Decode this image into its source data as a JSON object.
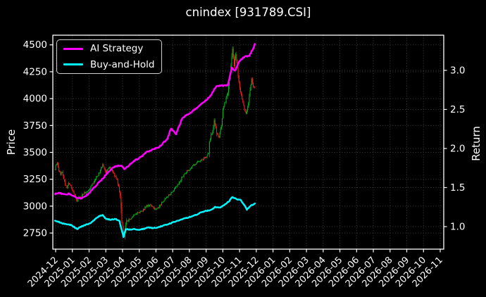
{
  "chart_data": {
    "type": "candlestick+line",
    "title": "cnindex [931789.CSI]",
    "background_color": "#000000",
    "text_color": "#ffffff",
    "grid": {
      "on": true,
      "color": "#8a8a8a",
      "style": "dotted"
    },
    "x_axis": {
      "tick_labels": [
        "2024-12",
        "2025-01",
        "2025-02",
        "2025-03",
        "2025-04",
        "2025-05",
        "2025-06",
        "2025-07",
        "2025-08",
        "2025-09",
        "2025-10",
        "2025-11",
        "2025-12",
        "2026-01",
        "2026-02",
        "2026-03",
        "2026-04",
        "2026-05",
        "2026-06",
        "2026-07",
        "2026-08",
        "2026-09",
        "2026-10",
        "2026-11"
      ],
      "label_rotation_deg": 45,
      "trading_days_per_month": 21,
      "num_days_with_data": 252
    },
    "price_axis": {
      "label": "Price",
      "side": "left",
      "ticks": [
        2750,
        3000,
        3250,
        3500,
        3750,
        4000,
        4250,
        4500
      ],
      "ylim": [
        2600,
        4590
      ]
    },
    "return_axis": {
      "label": "Return",
      "side": "right",
      "ticks": [
        "1.0",
        "1.5",
        "2.0",
        "2.5",
        "3.0"
      ],
      "tick_values": [
        1.0,
        1.5,
        2.0,
        2.5,
        3.0
      ],
      "ylim": [
        0.712,
        3.45
      ]
    },
    "candles": {
      "up_color": "#00b41e",
      "down_color": "#f21d1d",
      "close_waypoints": [
        [
          0,
          3340
        ],
        [
          1,
          3380
        ],
        [
          3,
          3400
        ],
        [
          5,
          3330
        ],
        [
          7,
          3290
        ],
        [
          9,
          3320
        ],
        [
          11,
          3260
        ],
        [
          13,
          3200
        ],
        [
          15,
          3170
        ],
        [
          17,
          3210
        ],
        [
          20,
          3180
        ],
        [
          23,
          3130
        ],
        [
          26,
          3080
        ],
        [
          28,
          3050
        ],
        [
          30,
          3090
        ],
        [
          33,
          3090
        ],
        [
          36,
          3120
        ],
        [
          39,
          3130
        ],
        [
          42,
          3150
        ],
        [
          46,
          3190
        ],
        [
          50,
          3240
        ],
        [
          54,
          3290
        ],
        [
          57,
          3330
        ],
        [
          60,
          3390
        ],
        [
          62,
          3350
        ],
        [
          64,
          3310
        ],
        [
          67,
          3350
        ],
        [
          69,
          3360
        ],
        [
          72,
          3330
        ],
        [
          74,
          3300
        ],
        [
          77,
          3260
        ],
        [
          80,
          3180
        ],
        [
          82,
          3100
        ],
        [
          84,
          2860
        ],
        [
          86,
          2750
        ],
        [
          87,
          2710
        ],
        [
          88,
          2780
        ],
        [
          90,
          2860
        ],
        [
          93,
          2880
        ],
        [
          96,
          2890
        ],
        [
          100,
          2920
        ],
        [
          105,
          2940
        ],
        [
          110,
          2960
        ],
        [
          115,
          3000
        ],
        [
          120,
          3010
        ],
        [
          125,
          2970
        ],
        [
          130,
          2990
        ],
        [
          135,
          3035
        ],
        [
          140,
          3080
        ],
        [
          145,
          3120
        ],
        [
          150,
          3160
        ],
        [
          155,
          3210
        ],
        [
          160,
          3270
        ],
        [
          165,
          3320
        ],
        [
          169,
          3340
        ],
        [
          174,
          3380
        ],
        [
          181,
          3420
        ],
        [
          187,
          3440
        ],
        [
          191,
          3470
        ],
        [
          193,
          3500
        ],
        [
          194,
          3600
        ],
        [
          196,
          3660
        ],
        [
          198,
          3700
        ],
        [
          200,
          3790
        ],
        [
          203,
          3680
        ],
        [
          206,
          3640
        ],
        [
          209,
          3750
        ],
        [
          211,
          3900
        ],
        [
          213,
          3950
        ],
        [
          217,
          4060
        ],
        [
          219,
          4180
        ],
        [
          221,
          4300
        ],
        [
          223,
          4460
        ],
        [
          225,
          4300
        ],
        [
          227,
          4420
        ],
        [
          230,
          4210
        ],
        [
          232,
          4100
        ],
        [
          235,
          3990
        ],
        [
          238,
          3900
        ],
        [
          240,
          3860
        ],
        [
          243,
          3960
        ],
        [
          245,
          4080
        ],
        [
          247,
          4180
        ],
        [
          249,
          4120
        ],
        [
          251,
          4100
        ]
      ]
    },
    "series": [
      {
        "name": "AI Strategy",
        "color": "#ff00ff",
        "axis": "return",
        "final_value": 3.33,
        "waypoints": [
          [
            0,
            1.42
          ],
          [
            6,
            1.43
          ],
          [
            12,
            1.41
          ],
          [
            18,
            1.42
          ],
          [
            22,
            1.4
          ],
          [
            27,
            1.37
          ],
          [
            33,
            1.36
          ],
          [
            38,
            1.39
          ],
          [
            42,
            1.42
          ],
          [
            48,
            1.49
          ],
          [
            55,
            1.56
          ],
          [
            62,
            1.64
          ],
          [
            68,
            1.71
          ],
          [
            75,
            1.77
          ],
          [
            83,
            1.78
          ],
          [
            87,
            1.74
          ],
          [
            95,
            1.8
          ],
          [
            99,
            1.84
          ],
          [
            108,
            1.89
          ],
          [
            116,
            1.96
          ],
          [
            124,
            1.99
          ],
          [
            132,
            2.03
          ],
          [
            141,
            2.12
          ],
          [
            146,
            2.26
          ],
          [
            152,
            2.18
          ],
          [
            157,
            2.31
          ],
          [
            160,
            2.39
          ],
          [
            169,
            2.45
          ],
          [
            178,
            2.52
          ],
          [
            187,
            2.59
          ],
          [
            195,
            2.67
          ],
          [
            202,
            2.79
          ],
          [
            206,
            2.8
          ],
          [
            217,
            2.81
          ],
          [
            222,
            3.03
          ],
          [
            226,
            2.99
          ],
          [
            231,
            3.11
          ],
          [
            237,
            3.17
          ],
          [
            244,
            3.19
          ],
          [
            248,
            3.26
          ],
          [
            251,
            3.33
          ]
        ]
      },
      {
        "name": "Buy-and-Hold",
        "color": "#00f5ff",
        "axis": "return",
        "final_value": 1.3,
        "waypoints": [
          [
            0,
            1.08
          ],
          [
            5,
            1.06
          ],
          [
            10,
            1.04
          ],
          [
            15,
            1.03
          ],
          [
            20,
            1.02
          ],
          [
            25,
            0.99
          ],
          [
            28,
            0.97
          ],
          [
            33,
            1.0
          ],
          [
            38,
            1.02
          ],
          [
            44,
            1.04
          ],
          [
            50,
            1.09
          ],
          [
            55,
            1.13
          ],
          [
            60,
            1.15
          ],
          [
            64,
            1.1
          ],
          [
            70,
            1.09
          ],
          [
            76,
            1.1
          ],
          [
            81,
            1.07
          ],
          [
            84,
            0.95
          ],
          [
            86,
            0.87
          ],
          [
            89,
            0.97
          ],
          [
            93,
            0.96
          ],
          [
            99,
            0.97
          ],
          [
            105,
            0.96
          ],
          [
            111,
            0.97
          ],
          [
            117,
            0.99
          ],
          [
            123,
            0.98
          ],
          [
            129,
            0.99
          ],
          [
            135,
            1.01
          ],
          [
            141,
            1.03
          ],
          [
            147,
            1.05
          ],
          [
            153,
            1.07
          ],
          [
            159,
            1.09
          ],
          [
            165,
            1.11
          ],
          [
            171,
            1.13
          ],
          [
            177,
            1.15
          ],
          [
            183,
            1.18
          ],
          [
            189,
            1.2
          ],
          [
            195,
            1.21
          ],
          [
            201,
            1.25
          ],
          [
            207,
            1.24
          ],
          [
            213,
            1.28
          ],
          [
            219,
            1.33
          ],
          [
            223,
            1.38
          ],
          [
            228,
            1.35
          ],
          [
            233,
            1.34
          ],
          [
            237,
            1.29
          ],
          [
            241,
            1.22
          ],
          [
            245,
            1.26
          ],
          [
            248,
            1.28
          ],
          [
            251,
            1.3
          ]
        ]
      }
    ],
    "legend": {
      "position": "upper-left"
    },
    "synthesis": {
      "seed": 11,
      "close_noise": 9,
      "wick_noise": 13,
      "line_jitter": [
        0.008,
        0.005
      ]
    }
  }
}
